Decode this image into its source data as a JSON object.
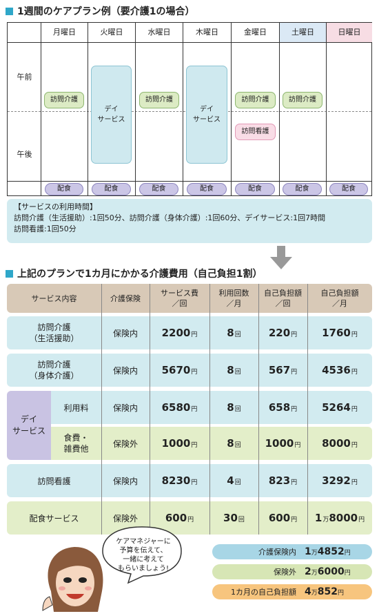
{
  "section1": {
    "title": "1週間のケアプラン例（要介護1の場合）"
  },
  "schedule": {
    "days": [
      "月曜日",
      "火曜日",
      "水曜日",
      "木曜日",
      "金曜日",
      "土曜日",
      "日曜日"
    ],
    "periods": {
      "am": "午前",
      "pm": "午後"
    },
    "visit_care": "訪問介護",
    "day_service": "デイ\nサービス",
    "visit_nursing": "訪問看護",
    "meal": "配食",
    "colors": {
      "saturday": "#dbe9f5",
      "sunday": "#f7dde4"
    }
  },
  "usage": {
    "title": "【サービスの利用時間】",
    "line1": "訪問介護（生活援助）:1回50分、訪問介護（身体介護）:1回60分、デイサービス:1回7時間",
    "line2": "訪問看護:1回50分"
  },
  "section2": {
    "title": "上記のプランで1カ月にかかる介護費用（自己負担1割）"
  },
  "cost_table": {
    "headers": [
      "サービス内容",
      "介護保険",
      "サービス費\n／回",
      "利用回数\n／月",
      "自己負担額\n／回",
      "自己負担額\n／月"
    ],
    "rows": [
      {
        "name": "訪問介護\n（生活援助）",
        "ins": "保険内",
        "fee": "2200",
        "times": "8",
        "self_once": "220",
        "self_month": "1760"
      },
      {
        "name": "訪問介護\n（身体介護）",
        "ins": "保険内",
        "fee": "5670",
        "times": "8",
        "self_once": "567",
        "self_month": "4536"
      },
      {
        "name": "利用料",
        "ins": "保険内",
        "fee": "6580",
        "times": "8",
        "self_once": "658",
        "self_month": "5264"
      },
      {
        "name": "食費・\n雑費他",
        "ins": "保険外",
        "fee": "1000",
        "times": "8",
        "self_once": "1000",
        "self_month": "8000"
      },
      {
        "name": "訪問看護",
        "ins": "保険内",
        "fee": "8230",
        "times": "4",
        "self_once": "823",
        "self_month": "3292"
      },
      {
        "name": "配食サービス",
        "ins": "保険外",
        "fee": "600",
        "times": "30",
        "self_once": "600",
        "self_month_man": "1",
        "self_month_rest": "8000"
      }
    ],
    "day_service_group": "デイ\nサービス",
    "unit_yen": "円",
    "unit_times": "回",
    "unit_man": "万"
  },
  "summary": [
    {
      "label": "介護保険内",
      "man": "1",
      "rest": "4852"
    },
    {
      "label": "保険外",
      "man": "2",
      "rest": "6000"
    },
    {
      "label": "1カ月の自己負担額",
      "man": "4",
      "rest": "852"
    }
  ],
  "speech": "ケアマネジャーに\n予算を伝えて、\n一緒に考えて\nもらいましょう!"
}
